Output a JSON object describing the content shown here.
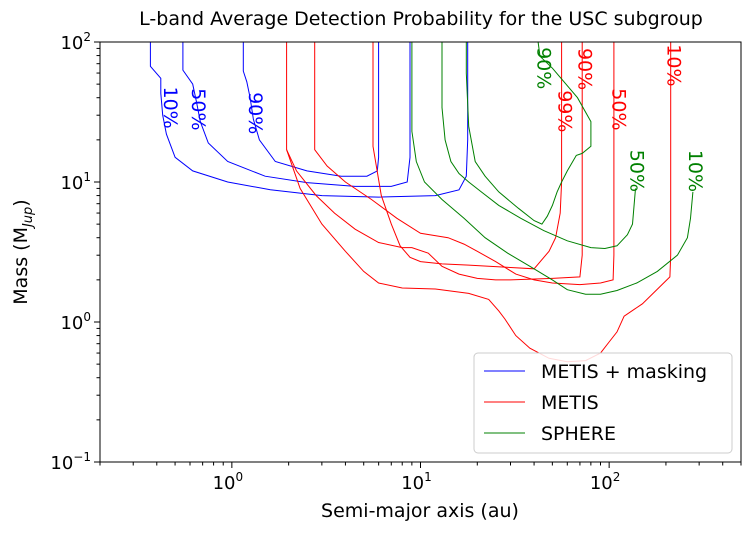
{
  "chart_data": {
    "type": "line",
    "title": "L-band Average Detection Probability for the USC subgroup",
    "xlabel": "Semi-major axis (au)",
    "ylabel_main": "Mass (M",
    "ylabel_sub": "Jup",
    "ylabel_close": ")",
    "x_scale": "log",
    "y_scale": "log",
    "xlim": [
      0.2,
      500
    ],
    "ylim": [
      0.1,
      100
    ],
    "x_ticks": [
      {
        "value": 1,
        "base": "10",
        "exp": "0"
      },
      {
        "value": 10,
        "base": "10",
        "exp": "1"
      },
      {
        "value": 100,
        "base": "10",
        "exp": "2"
      }
    ],
    "y_ticks": [
      {
        "value": 0.1,
        "base": "10",
        "exp": "−1"
      },
      {
        "value": 1,
        "base": "10",
        "exp": "0"
      },
      {
        "value": 10,
        "base": "10",
        "exp": "1"
      },
      {
        "value": 100,
        "base": "10",
        "exp": "2"
      }
    ],
    "legend_position": "lower-right",
    "legend": [
      {
        "label": "METIS + masking",
        "color": "#0000ff"
      },
      {
        "label": "METIS",
        "color": "#ff0000"
      },
      {
        "label": "SPHERE",
        "color": "#008000"
      }
    ],
    "series": [
      {
        "group": "METIS + masking",
        "label": "10%",
        "color": "#0000ff",
        "points": [
          [
            0.37,
            100
          ],
          [
            0.37,
            67
          ],
          [
            0.42,
            55
          ],
          [
            0.42,
            43
          ],
          [
            0.43,
            30
          ],
          [
            0.45,
            22
          ],
          [
            0.5,
            15
          ],
          [
            0.62,
            12
          ],
          [
            0.95,
            10
          ],
          [
            1.6,
            8.8
          ],
          [
            3,
            8.0
          ],
          [
            6,
            7.8
          ],
          [
            12,
            8.0
          ],
          [
            16,
            8.8
          ],
          [
            17.5,
            11
          ],
          [
            17.8,
            20
          ],
          [
            17.8,
            100
          ]
        ],
        "label_at": [
          0.47,
          34
        ]
      },
      {
        "group": "METIS + masking",
        "label": "50%",
        "color": "#0000ff",
        "points": [
          [
            0.55,
            100
          ],
          [
            0.55,
            63
          ],
          [
            0.62,
            50
          ],
          [
            0.65,
            37
          ],
          [
            0.68,
            27
          ],
          [
            0.75,
            19
          ],
          [
            0.95,
            14
          ],
          [
            1.5,
            11
          ],
          [
            2.5,
            9.9
          ],
          [
            4.5,
            9.3
          ],
          [
            7,
            9.3
          ],
          [
            8.5,
            10
          ],
          [
            8.8,
            15
          ],
          [
            8.8,
            100
          ]
        ],
        "label_at": [
          0.66,
          33
        ]
      },
      {
        "group": "METIS + masking",
        "label": "90%",
        "color": "#0000ff",
        "points": [
          [
            1.15,
            100
          ],
          [
            1.15,
            62
          ],
          [
            1.2,
            52
          ],
          [
            1.25,
            40
          ],
          [
            1.3,
            28
          ],
          [
            1.4,
            20
          ],
          [
            1.7,
            14
          ],
          [
            2.5,
            12
          ],
          [
            3.8,
            11
          ],
          [
            5.2,
            11
          ],
          [
            5.9,
            12
          ],
          [
            6,
            15
          ],
          [
            6,
            100
          ]
        ],
        "label_at": [
          1.33,
          31
        ]
      },
      {
        "group": "METIS",
        "label": "99%",
        "color": "#ff0000",
        "points": [
          [
            1.95,
            100
          ],
          [
            1.95,
            17
          ],
          [
            2.2,
            12
          ],
          [
            2.8,
            8
          ],
          [
            3.5,
            6
          ],
          [
            4.5,
            4.6
          ],
          [
            6,
            3.7
          ],
          [
            8,
            3.4
          ],
          [
            9,
            3.4
          ],
          [
            11,
            3.1
          ],
          [
            13,
            2.5
          ],
          [
            16,
            2.2
          ],
          [
            20,
            2.05
          ],
          [
            25,
            2.0
          ],
          [
            30,
            2.0
          ],
          [
            50,
            2.05
          ],
          [
            70,
            2.1
          ],
          [
            72,
            3
          ],
          [
            72,
            100
          ]
        ],
        "label_at": [
          58,
          32
        ]
      },
      {
        "group": "METIS",
        "label": "90%",
        "color": "#ff0000",
        "points": [
          [
            2.75,
            100
          ],
          [
            2.75,
            17
          ],
          [
            3.2,
            13
          ],
          [
            4,
            10
          ],
          [
            5.5,
            7.5
          ],
          [
            7.5,
            5.5
          ],
          [
            10,
            4.3
          ],
          [
            14,
            4.0
          ],
          [
            17,
            3.6
          ],
          [
            20,
            3.2
          ],
          [
            25,
            2.7
          ],
          [
            32,
            2.2
          ],
          [
            40,
            2.0
          ],
          [
            50,
            1.9
          ],
          [
            70,
            1.85
          ],
          [
            90,
            1.9
          ],
          [
            105,
            2.0
          ],
          [
            106,
            3
          ],
          [
            106,
            100
          ]
        ],
        "label_at": [
          74,
          64
        ]
      },
      {
        "group": "METIS",
        "label": "50%",
        "color": "#ff0000",
        "points": [
          [
            5.6,
            100
          ],
          [
            5.6,
            18
          ],
          [
            6.2,
            8
          ],
          [
            7,
            5
          ],
          [
            7.8,
            3.5
          ],
          [
            8.8,
            2.9
          ],
          [
            10,
            2.7
          ],
          [
            13,
            2.6
          ],
          [
            18,
            2.55
          ],
          [
            23,
            2.5
          ],
          [
            30,
            2.45
          ],
          [
            40,
            2.4
          ],
          [
            48,
            3.2
          ],
          [
            52,
            4
          ],
          [
            55,
            6
          ],
          [
            56,
            10
          ],
          [
            56,
            100
          ]
        ],
        "label_at": [
          112,
          33
        ]
      },
      {
        "group": "METIS",
        "label": "10%",
        "color": "#ff0000",
        "points": [
          [
            1.95,
            17
          ],
          [
            2.3,
            9
          ],
          [
            3,
            5
          ],
          [
            4,
            3.2
          ],
          [
            5,
            2.3
          ],
          [
            6,
            1.9
          ],
          [
            8,
            1.75
          ],
          [
            12,
            1.72
          ],
          [
            18,
            1.6
          ],
          [
            23,
            1.45
          ],
          [
            26,
            1.2
          ],
          [
            28,
            1.05
          ],
          [
            32,
            0.8
          ],
          [
            38,
            0.65
          ],
          [
            48,
            0.55
          ],
          [
            60,
            0.52
          ],
          [
            75,
            0.53
          ],
          [
            90,
            0.6
          ],
          [
            100,
            0.72
          ],
          [
            110,
            0.85
          ],
          [
            120,
            1.1
          ],
          [
            150,
            1.35
          ],
          [
            210,
            2.1
          ],
          [
            212,
            3
          ],
          [
            212,
            100
          ]
        ],
        "label_at": [
          220,
          68
        ]
      },
      {
        "group": "SPHERE",
        "label": "90%",
        "color": "#008000",
        "points": [
          [
            17.5,
            100
          ],
          [
            17.5,
            60
          ],
          [
            18,
            25
          ],
          [
            19.5,
            14
          ],
          [
            22,
            11
          ],
          [
            26,
            8.5
          ],
          [
            33,
            6.5
          ],
          [
            40,
            5.3
          ],
          [
            44,
            5.0
          ],
          [
            47,
            5.7
          ],
          [
            50,
            6.8
          ],
          [
            53,
            8.5
          ],
          [
            56,
            10
          ],
          [
            60,
            12
          ],
          [
            67,
            15.5
          ],
          [
            72,
            16
          ],
          [
            80,
            18
          ],
          [
            80,
            27
          ],
          [
            68,
            40
          ],
          [
            50,
            65
          ],
          [
            43,
            79
          ],
          [
            42,
            100
          ]
        ],
        "label_at": [
          45,
          65
        ]
      },
      {
        "group": "SPHERE",
        "label": "50%",
        "color": "#008000",
        "points": [
          [
            13,
            100
          ],
          [
            13,
            34
          ],
          [
            13.5,
            20
          ],
          [
            14.5,
            14
          ],
          [
            16,
            11.5
          ],
          [
            18,
            10
          ],
          [
            21,
            8.5
          ],
          [
            26,
            6.8
          ],
          [
            34,
            5.5
          ],
          [
            45,
            4.5
          ],
          [
            60,
            3.8
          ],
          [
            80,
            3.4
          ],
          [
            95,
            3.35
          ],
          [
            110,
            3.5
          ],
          [
            125,
            4.2
          ],
          [
            133,
            5
          ],
          [
            138,
            9
          ]
        ],
        "label_at": [
          140,
          12
        ]
      },
      {
        "group": "SPHERE",
        "label": "10%",
        "color": "#008000",
        "points": [
          [
            9,
            100
          ],
          [
            9,
            23
          ],
          [
            9.5,
            14
          ],
          [
            10.5,
            10
          ],
          [
            13,
            7.5
          ],
          [
            17,
            5.5
          ],
          [
            22,
            4
          ],
          [
            29,
            3.1
          ],
          [
            38,
            2.5
          ],
          [
            50,
            2.0
          ],
          [
            60,
            1.7
          ],
          [
            75,
            1.58
          ],
          [
            90,
            1.58
          ],
          [
            110,
            1.68
          ],
          [
            140,
            1.9
          ],
          [
            180,
            2.3
          ],
          [
            230,
            3
          ],
          [
            260,
            4
          ],
          [
            270,
            5.5
          ],
          [
            278,
            8.5
          ]
        ],
        "label_at": [
          285,
          12
        ]
      }
    ]
  }
}
